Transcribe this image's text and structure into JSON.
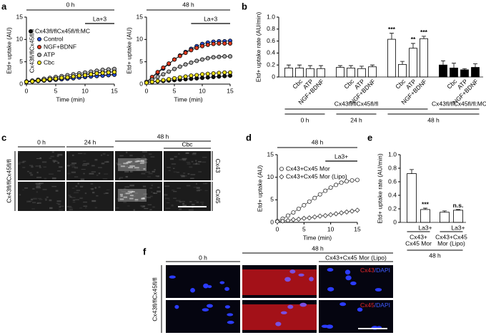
{
  "panel_labels": [
    "a",
    "b",
    "c",
    "d",
    "e",
    "f"
  ],
  "chart_data": [
    {
      "type": "line",
      "title": "0 h",
      "x_label": "Time (min)",
      "y_label": "Etd+ uptake (AU)",
      "x": [
        0,
        1,
        2,
        3,
        4,
        5,
        6,
        7,
        8,
        9,
        10,
        11,
        12,
        13,
        14,
        15
      ],
      "xlim": [
        0,
        15
      ],
      "xticks": [
        0,
        5,
        10,
        15
      ],
      "ylim": [
        0,
        15
      ],
      "yticks": [
        0,
        5,
        10,
        15
      ],
      "annotation": "La+3",
      "annotation_span": [
        10,
        15
      ],
      "legend": "upper left",
      "legend_group_label": "Cx43fl/flCx45fl/fl",
      "series": [
        {
          "name": "Cx43fl/flCx45fl/fl:MC",
          "color": "#111111",
          "edge": "#000000",
          "marker": "circle",
          "values": [
            0.5,
            0.6,
            0.7,
            0.8,
            0.9,
            1.0,
            1.1,
            1.3,
            1.4,
            1.5,
            1.6,
            1.8,
            1.9,
            2.0,
            2.1,
            2.2
          ]
        },
        {
          "name": "Control",
          "color": "#2a4fd8",
          "edge": "#000000",
          "marker": "circle",
          "values": [
            0.5,
            0.6,
            0.7,
            0.8,
            0.9,
            1.0,
            1.1,
            1.2,
            1.3,
            1.5,
            1.6,
            1.7,
            1.8,
            1.9,
            2.0,
            2.1
          ]
        },
        {
          "name": "NGF+BDNF",
          "color": "#e03a1e",
          "edge": "#000000",
          "marker": "circle",
          "values": [
            0.5,
            0.7,
            0.8,
            1.0,
            1.1,
            1.3,
            1.4,
            1.6,
            1.8,
            2.0,
            2.2,
            2.4,
            2.6,
            2.7,
            2.8,
            2.9
          ]
        },
        {
          "name": "ATP",
          "color": "#a8a8a8",
          "edge": "#000000",
          "marker": "circle",
          "values": [
            0.6,
            0.8,
            1.0,
            1.2,
            1.4,
            1.6,
            1.8,
            2.0,
            2.2,
            2.4,
            2.6,
            2.8,
            3.0,
            3.2,
            3.3,
            3.4
          ]
        },
        {
          "name": "Cbc",
          "color": "#f2e21a",
          "edge": "#000000",
          "marker": "circle",
          "values": [
            0.5,
            0.6,
            0.8,
            0.9,
            1.1,
            1.2,
            1.4,
            1.5,
            1.7,
            1.9,
            2.0,
            2.2,
            2.4,
            2.5,
            2.6,
            2.7
          ]
        }
      ]
    },
    {
      "type": "line",
      "title": "48 h",
      "x_label": "Time (min)",
      "y_label": "Etd+ uptake (AU)",
      "x": [
        0,
        1,
        2,
        3,
        4,
        5,
        6,
        7,
        8,
        9,
        10,
        11,
        12,
        13,
        14,
        15
      ],
      "xlim": [
        0,
        15
      ],
      "xticks": [
        0,
        5,
        10,
        15
      ],
      "ylim": [
        0,
        15
      ],
      "yticks": [
        0,
        5,
        10,
        15
      ],
      "annotation": "La+3",
      "annotation_span": [
        8,
        15
      ],
      "series": [
        {
          "color": "#111111",
          "edge": "#000000",
          "marker": "circle",
          "values": [
            0.4,
            0.5,
            0.6,
            0.7,
            0.8,
            0.9,
            1.0,
            1.1,
            1.2,
            1.3,
            1.4,
            1.5,
            1.6,
            1.7,
            1.8,
            1.9
          ]
        },
        {
          "color": "#2a4fd8",
          "edge": "#000000",
          "marker": "circle",
          "values": [
            0.5,
            1.5,
            2.5,
            3.5,
            4.5,
            5.5,
            6.4,
            7.2,
            7.9,
            8.5,
            9.0,
            9.3,
            9.5,
            9.6,
            9.6,
            9.7
          ]
        },
        {
          "color": "#e03a1e",
          "edge": "#000000",
          "marker": "circle",
          "values": [
            0.5,
            1.6,
            2.7,
            3.7,
            4.6,
            5.5,
            6.3,
            7.0,
            7.6,
            8.1,
            8.5,
            8.8,
            9.0,
            9.1,
            9.1,
            9.1
          ]
        },
        {
          "color": "#a8a8a8",
          "edge": "#000000",
          "marker": "circle",
          "values": [
            0.5,
            1.0,
            1.6,
            2.2,
            2.8,
            3.4,
            3.9,
            4.4,
            4.8,
            5.2,
            5.5,
            5.8,
            6.0,
            6.1,
            6.2,
            6.2
          ]
        },
        {
          "color": "#f2e21a",
          "edge": "#000000",
          "marker": "circle",
          "values": [
            0.3,
            0.5,
            0.7,
            0.9,
            1.1,
            1.3,
            1.5,
            1.7,
            1.9,
            2.0,
            2.2,
            2.3,
            2.4,
            2.5,
            2.6,
            2.6
          ]
        }
      ]
    },
    {
      "type": "bar",
      "y_label": "Etd+ uptake rate (AU/min)",
      "categories": [
        null,
        "Cbc",
        "ATP",
        "NGF+BDNF",
        null,
        "Cbc",
        "ATP",
        "NGF+BDNF",
        null,
        "Cbc",
        "ATP",
        "NGF+BDNF",
        null,
        "Cbc",
        "ATP",
        "NGF+BDNF"
      ],
      "values": [
        0.15,
        0.15,
        0.14,
        0.14,
        0.16,
        0.15,
        0.14,
        0.17,
        0.63,
        0.21,
        0.48,
        0.64,
        0.2,
        0.15,
        0.12,
        0.16
      ],
      "errors": [
        0.05,
        0.05,
        0.05,
        0.05,
        0.03,
        0.04,
        0.04,
        0.03,
        0.1,
        0.05,
        0.08,
        0.04,
        0.07,
        0.08,
        0.02,
        0.06
      ],
      "bar_colors": [
        "#ffffff",
        "#ffffff",
        "#ffffff",
        "#ffffff",
        "#ffffff",
        "#ffffff",
        "#ffffff",
        "#ffffff",
        "#ffffff",
        "#ffffff",
        "#ffffff",
        "#ffffff",
        "#000000",
        "#000000",
        "#000000",
        "#000000"
      ],
      "significance": [
        null,
        null,
        null,
        null,
        null,
        null,
        null,
        null,
        "***",
        null,
        "**",
        "***",
        null,
        null,
        null,
        null
      ],
      "ylim": [
        0,
        1
      ],
      "yticks": [
        0,
        0.2,
        0.4,
        0.6,
        0.8,
        {
          "value": 1,
          "label": "1.0"
        }
      ],
      "group_labels": [
        "Cx43fl/flCx45fl/fl",
        "Cx43fl/flCx45fl/fl:MC"
      ],
      "time_labels": [
        "0 h",
        "24 h",
        "48 h"
      ]
    },
    {
      "type": "line",
      "title": "48 h",
      "x_label": "Time (min)",
      "y_label": "Etd+ uptake (AU)",
      "x": [
        0,
        1,
        2,
        3,
        4,
        5,
        6,
        7,
        8,
        9,
        10,
        11,
        12,
        13,
        14,
        15
      ],
      "xlim": [
        0,
        15
      ],
      "xticks": [
        0,
        5,
        10,
        15
      ],
      "ylim": [
        0,
        15
      ],
      "yticks": [
        0,
        5,
        10,
        15
      ],
      "annotation": "La3+",
      "annotation_span": [
        9,
        15
      ],
      "legend": "upper left",
      "series": [
        {
          "name": "Cx43+Cx45 Mor",
          "color": "#ffffff",
          "edge": "#333333",
          "marker": "circle",
          "values": [
            0.3,
            0.8,
            1.5,
            2.2,
            3.0,
            3.8,
            4.6,
            5.4,
            6.2,
            7.0,
            7.7,
            8.3,
            8.8,
            9.1,
            9.3,
            9.4
          ]
        },
        {
          "name": "Cx43+Cx45 Mor (Lipo)",
          "color": "#ffffff",
          "edge": "#333333",
          "marker": "diamond",
          "values": [
            0.2,
            0.3,
            0.4,
            0.6,
            0.7,
            0.9,
            1.0,
            1.2,
            1.4,
            1.5,
            1.7,
            1.9,
            2.1,
            2.3,
            2.5,
            2.7
          ]
        }
      ]
    },
    {
      "type": "bar",
      "y_label": "Etd+ uptake rate (AU/min)",
      "categories": [
        null,
        "La3+",
        null,
        "La3+"
      ],
      "values": [
        0.72,
        0.19,
        0.15,
        0.18
      ],
      "errors": [
        0.06,
        0.02,
        0.02,
        0.01
      ],
      "bar_colors": [
        "#ffffff",
        "#ffffff",
        "#ffffff",
        "#ffffff"
      ],
      "significance": [
        null,
        "***",
        null,
        "n.s."
      ],
      "ylim": [
        0,
        1
      ],
      "yticks": [
        0,
        0.2,
        0.4,
        0.6,
        0.8,
        {
          "value": 1,
          "label": "1.0"
        }
      ],
      "group_labels": [
        [
          "Cx43+",
          "Cx45 Mor"
        ],
        [
          "Cx43+Cx45",
          "Mor (Lipo)"
        ]
      ],
      "time_labels": [
        "48 h"
      ]
    }
  ],
  "image_panels": [
    {
      "header_top": [
        "0 h",
        "24 h",
        "48 h"
      ],
      "header_sub": "Cbc",
      "row_labels": [
        "Cx43",
        "Cx45"
      ],
      "side_label": "Cx43fl/flCx45fl/fl"
    },
    {
      "header_top": [
        "0 h",
        "48 h"
      ],
      "header_sub": "Cx43+Cx45 Mor (Lipo)",
      "overlay_labels": [
        [
          "Cx43",
          "/DAPI"
        ],
        [
          "Cx45",
          "/DAPI"
        ]
      ],
      "side_label": "Cx43fl/flCx45fl/fl"
    }
  ]
}
